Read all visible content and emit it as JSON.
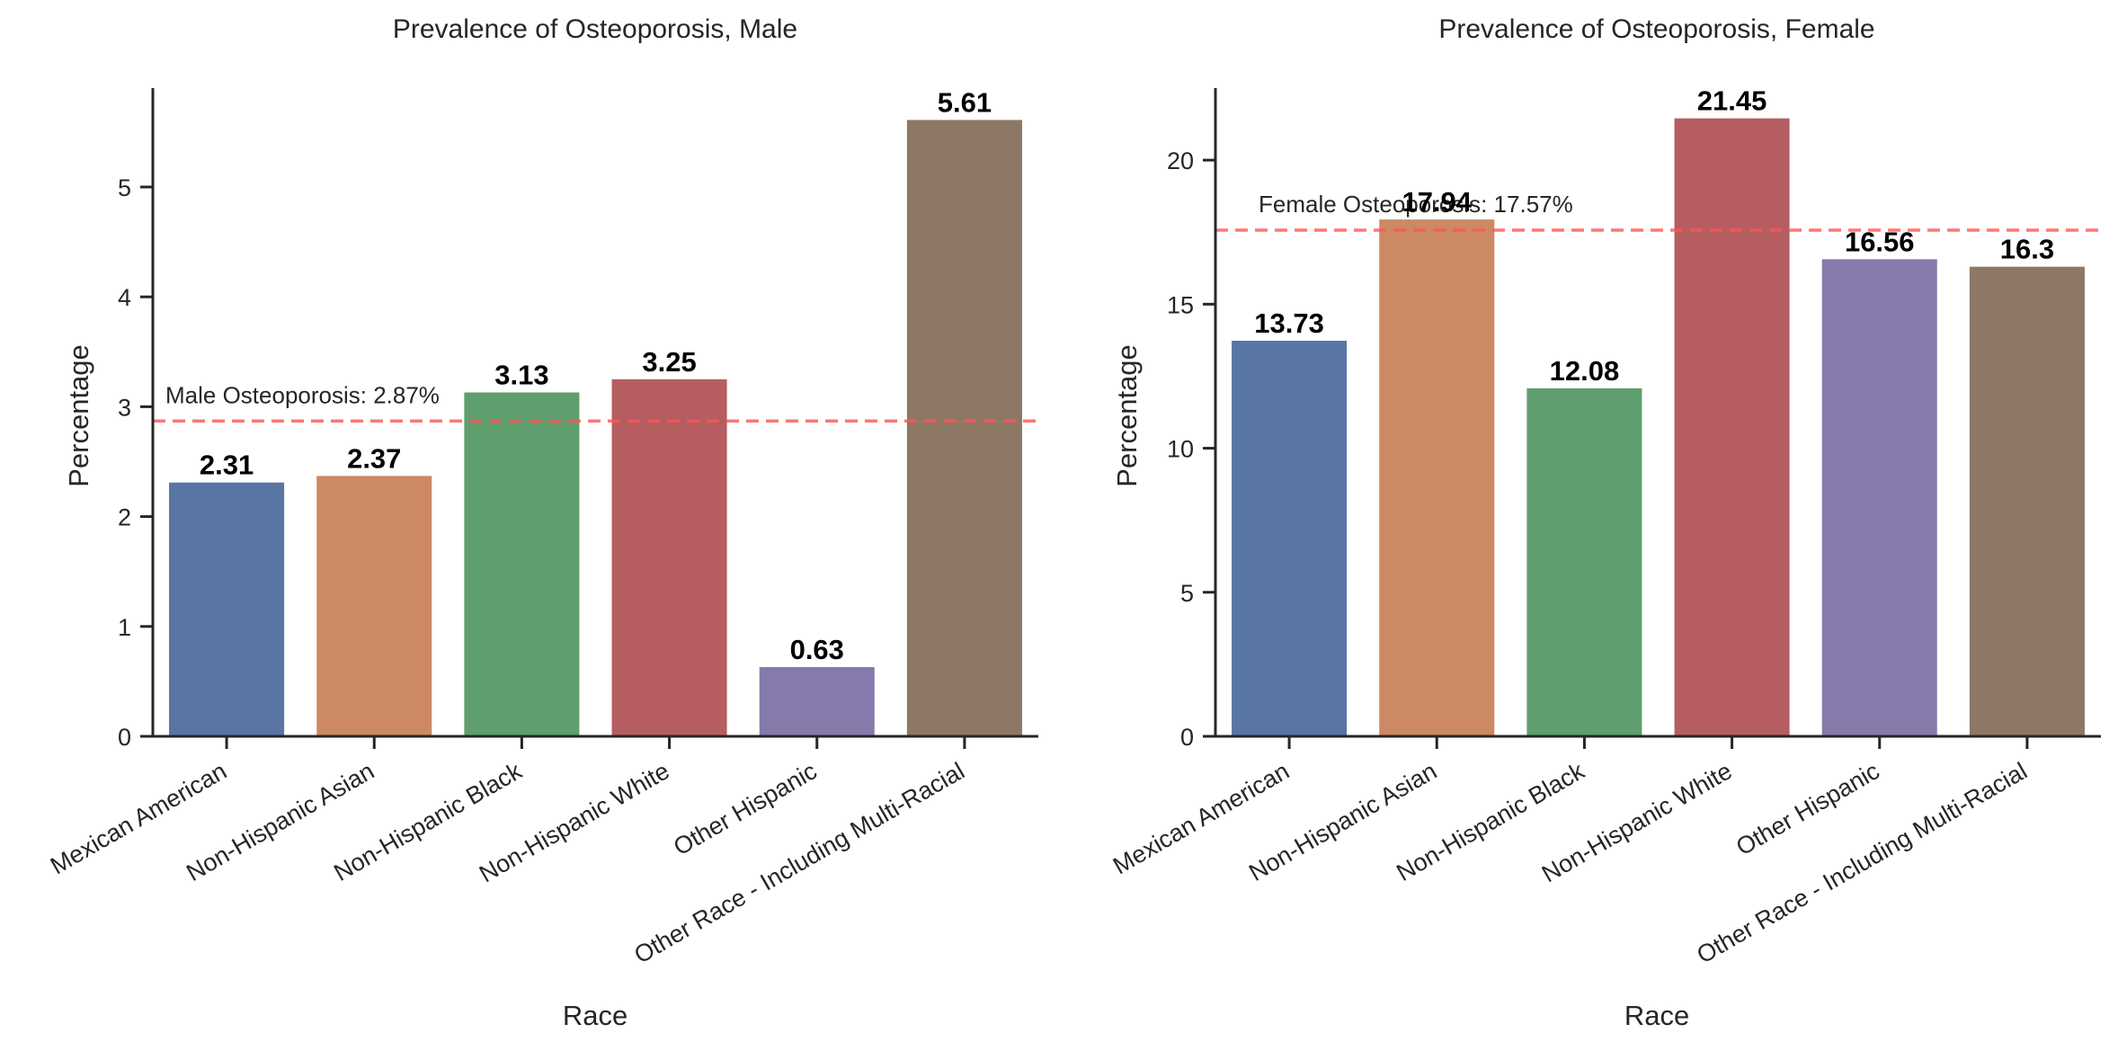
{
  "chart_data": [
    {
      "type": "bar",
      "title": "Prevalence of Osteoporosis, Male",
      "xlabel": "Race",
      "ylabel": "Percentage",
      "categories": [
        "Mexican American",
        "Non-Hispanic Asian",
        "Non-Hispanic Black",
        "Non-Hispanic White",
        "Other Hispanic",
        "Other Race - Including Multi-Racial"
      ],
      "values": [
        2.31,
        2.37,
        3.13,
        3.25,
        0.63,
        5.61
      ],
      "data_labels": [
        "2.31",
        "2.37",
        "3.13",
        "3.25",
        "0.63",
        "5.61"
      ],
      "colors": [
        "#5875a4",
        "#cc8963",
        "#5f9e6e",
        "#b55d60",
        "#857aab",
        "#8d7866"
      ],
      "ylim": [
        0,
        5.9
      ],
      "yticks": [
        0,
        1,
        2,
        3,
        4,
        5
      ],
      "grid": false,
      "reference_line": {
        "value": 2.87,
        "label": "Male Osteoporosis: 2.87%",
        "color": "#ff5555",
        "style": "dashed"
      }
    },
    {
      "type": "bar",
      "title": "Prevalence of Osteoporosis, Female",
      "xlabel": "Race",
      "ylabel": "Percentage",
      "categories": [
        "Mexican American",
        "Non-Hispanic Asian",
        "Non-Hispanic Black",
        "Non-Hispanic White",
        "Other Hispanic",
        "Other Race - Including Multi-Racial"
      ],
      "values": [
        13.73,
        17.94,
        12.08,
        21.45,
        16.56,
        16.3
      ],
      "data_labels": [
        "13.73",
        "17.94",
        "12.08",
        "21.45",
        "16.56",
        "16.3"
      ],
      "colors": [
        "#5875a4",
        "#cc8963",
        "#5f9e6e",
        "#b55d60",
        "#857aab",
        "#8d7866"
      ],
      "ylim": [
        0,
        22.5
      ],
      "yticks": [
        0,
        5,
        10,
        15,
        20
      ],
      "grid": false,
      "reference_line": {
        "value": 17.57,
        "label": "Female Osteoporosis: 17.57%",
        "color": "#ff5555",
        "style": "dashed"
      }
    }
  ]
}
